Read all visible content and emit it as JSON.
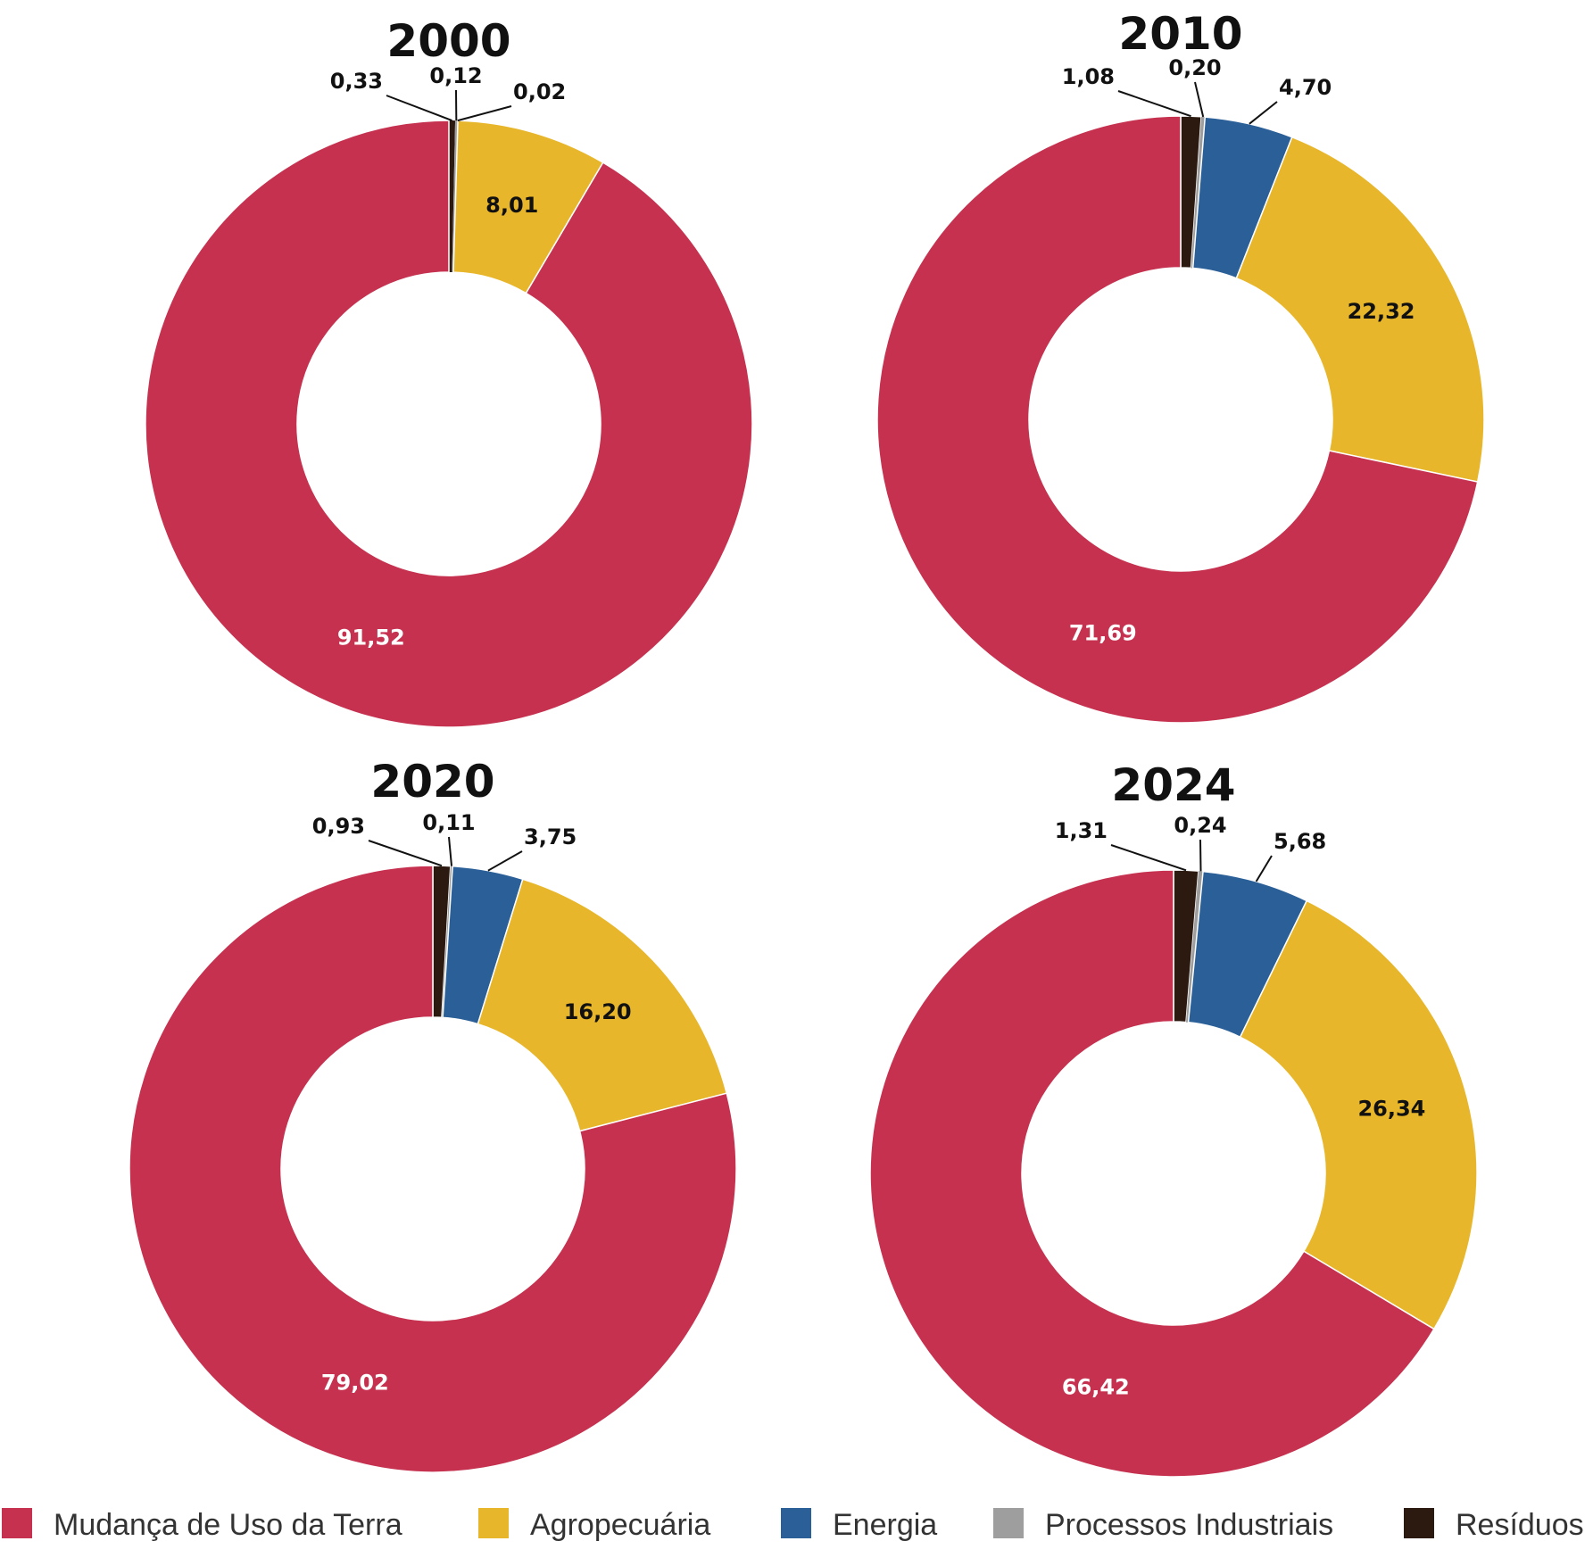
{
  "chart_data": {
    "type": "pie",
    "categories": [
      "Mudança de Uso da Terra",
      "Agropecuária",
      "Energia",
      "Processos Industriais",
      "Resíduos"
    ],
    "colors": [
      "#c5314f",
      "#e8b62a",
      "#2a5f98",
      "#9e9e9e",
      "#2c1a10"
    ],
    "label_text_colors": [
      "#ffffff",
      "#111111",
      "#111111",
      "#111111",
      "#111111"
    ],
    "legend_position": "bottom",
    "charts": [
      {
        "title": "2000",
        "values": [
          91.52,
          8.01,
          0.02,
          0.12,
          0.33
        ],
        "labels": [
          "91,52",
          "8,01",
          "0,02",
          "0,12",
          "0,33"
        ]
      },
      {
        "title": "2010",
        "values": [
          71.69,
          22.32,
          4.7,
          0.2,
          1.08
        ],
        "labels": [
          "71,69",
          "22,32",
          "4,70",
          "0,20",
          "1,08"
        ]
      },
      {
        "title": "2020",
        "values": [
          79.02,
          16.2,
          3.75,
          0.11,
          0.93
        ],
        "labels": [
          "79,02",
          "16,20",
          "3,75",
          "0,11",
          "0,93"
        ]
      },
      {
        "title": "2024",
        "values": [
          66.42,
          26.34,
          5.68,
          0.24,
          1.31
        ],
        "labels": [
          "66,42",
          "26,34",
          "5,68",
          "0,24",
          "1,31"
        ]
      }
    ]
  }
}
